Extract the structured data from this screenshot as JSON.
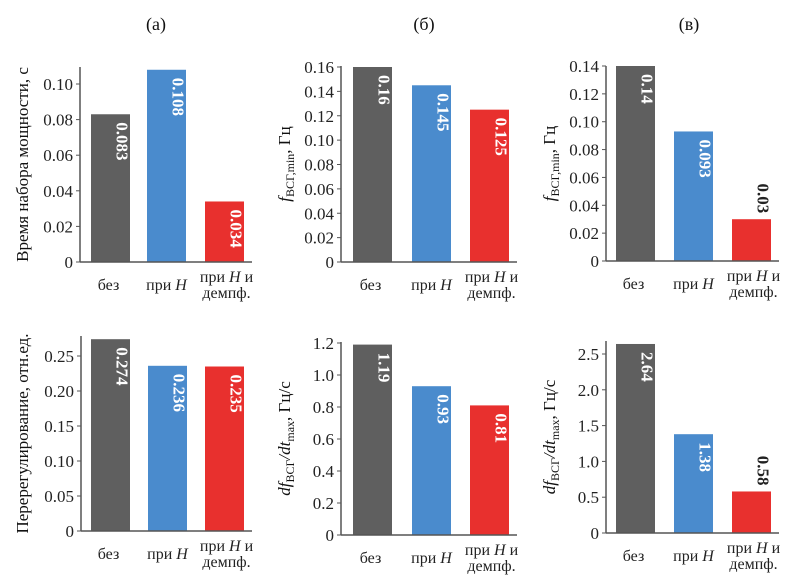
{
  "colors": {
    "bez": "#5f5f5f",
    "pri_H": "#4a8bcd",
    "pri_H_demp": "#e8302e",
    "axis": "#555555"
  },
  "chart_data": [
    {
      "id": "a-top",
      "type": "bar",
      "panel_title": "(а)",
      "ylabel": "Время набора мощности, с",
      "categories": [
        "без",
        "при H",
        "при H и демпф."
      ],
      "values": [
        0.083,
        0.108,
        0.034
      ],
      "value_labels": [
        "0.083",
        "0.108",
        "0.034"
      ],
      "ylim": [
        0,
        0.11
      ],
      "yticks": [
        0,
        0.02,
        0.04,
        0.06,
        0.08,
        0.1
      ],
      "ytick_labels": [
        "0",
        "0.02",
        "0.04",
        "0.06",
        "0.08",
        "0.10"
      ]
    },
    {
      "id": "b-top",
      "type": "bar",
      "panel_title": "(б)",
      "ylabel": "fВСГ,min, Гц",
      "categories": [
        "без",
        "при H",
        "при H и демпф."
      ],
      "values": [
        0.16,
        0.145,
        0.125
      ],
      "value_labels": [
        "0.16",
        "0.145",
        "0.125"
      ],
      "ylim": [
        0,
        0.16
      ],
      "yticks": [
        0,
        0.02,
        0.04,
        0.06,
        0.08,
        0.1,
        0.12,
        0.14,
        0.16
      ],
      "ytick_labels": [
        "0",
        "0.02",
        "0.04",
        "0.06",
        "0.08",
        "0.10",
        "0.12",
        "0.14",
        "0.16"
      ]
    },
    {
      "id": "c-top",
      "type": "bar",
      "panel_title": "(в)",
      "ylabel": "fВСГ,min, Гц",
      "categories": [
        "без",
        "при H",
        "при H и демпф."
      ],
      "values": [
        0.14,
        0.093,
        0.03
      ],
      "value_labels": [
        "0.14",
        "0.093",
        "0.03"
      ],
      "ylim": [
        0,
        0.14
      ],
      "yticks": [
        0,
        0.02,
        0.04,
        0.06,
        0.08,
        0.1,
        0.12,
        0.14
      ],
      "ytick_labels": [
        "0",
        "0.02",
        "0.04",
        "0.06",
        "0.08",
        "0.10",
        "0.12",
        "0.14"
      ]
    },
    {
      "id": "a-bottom",
      "type": "bar",
      "panel_title": "",
      "ylabel": "Перерегулирование, отн.ед.",
      "categories": [
        "без",
        "при H",
        "при H и демпф."
      ],
      "values": [
        0.274,
        0.236,
        0.235
      ],
      "value_labels": [
        "0.274",
        "0.236",
        "0.235"
      ],
      "ylim": [
        0,
        0.28
      ],
      "yticks": [
        0,
        0.05,
        0.1,
        0.15,
        0.2,
        0.25
      ],
      "ytick_labels": [
        "0",
        "0.05",
        "0.10",
        "0.15",
        "0.20",
        "0.25"
      ]
    },
    {
      "id": "b-bottom",
      "type": "bar",
      "panel_title": "",
      "ylabel": "dfВСГ/dtmax, Гц/с",
      "categories": [
        "без",
        "при H",
        "при H и демпф."
      ],
      "values": [
        1.19,
        0.93,
        0.81
      ],
      "value_labels": [
        "1.19",
        "0.93",
        "0.81"
      ],
      "ylim": [
        0,
        1.2
      ],
      "yticks": [
        0,
        0.2,
        0.4,
        0.6,
        0.8,
        1.0,
        1.2
      ],
      "ytick_labels": [
        "0",
        "0.2",
        "0.4",
        "0.6",
        "0.8",
        "1.0",
        "1.2"
      ]
    },
    {
      "id": "c-bottom",
      "type": "bar",
      "panel_title": "",
      "ylabel": "dfВСГ/dtmax, Гц/с",
      "categories": [
        "без",
        "при H",
        "при H и демпф."
      ],
      "values": [
        2.64,
        1.38,
        0.58
      ],
      "value_labels": [
        "2.64",
        "1.38",
        "0.58"
      ],
      "ylim": [
        0,
        2.7
      ],
      "yticks": [
        0,
        0.5,
        1.0,
        1.5,
        2.0,
        2.5
      ],
      "ytick_labels": [
        "0",
        "0.5",
        "1.0",
        "1.5",
        "2.0",
        "2.5"
      ]
    }
  ],
  "category_labels": {
    "bez": "без",
    "pri": "при",
    "H": "H",
    "i": "и",
    "demp": "демпф."
  },
  "ylabel_parts": {
    "f": "f",
    "vsg": "ВСГ",
    "min_sub": ",min",
    "gc": ", Гц",
    "df": "df",
    "slash_dt": "/dt",
    "max_sub": "max",
    "gcs": ", Гц/с"
  }
}
